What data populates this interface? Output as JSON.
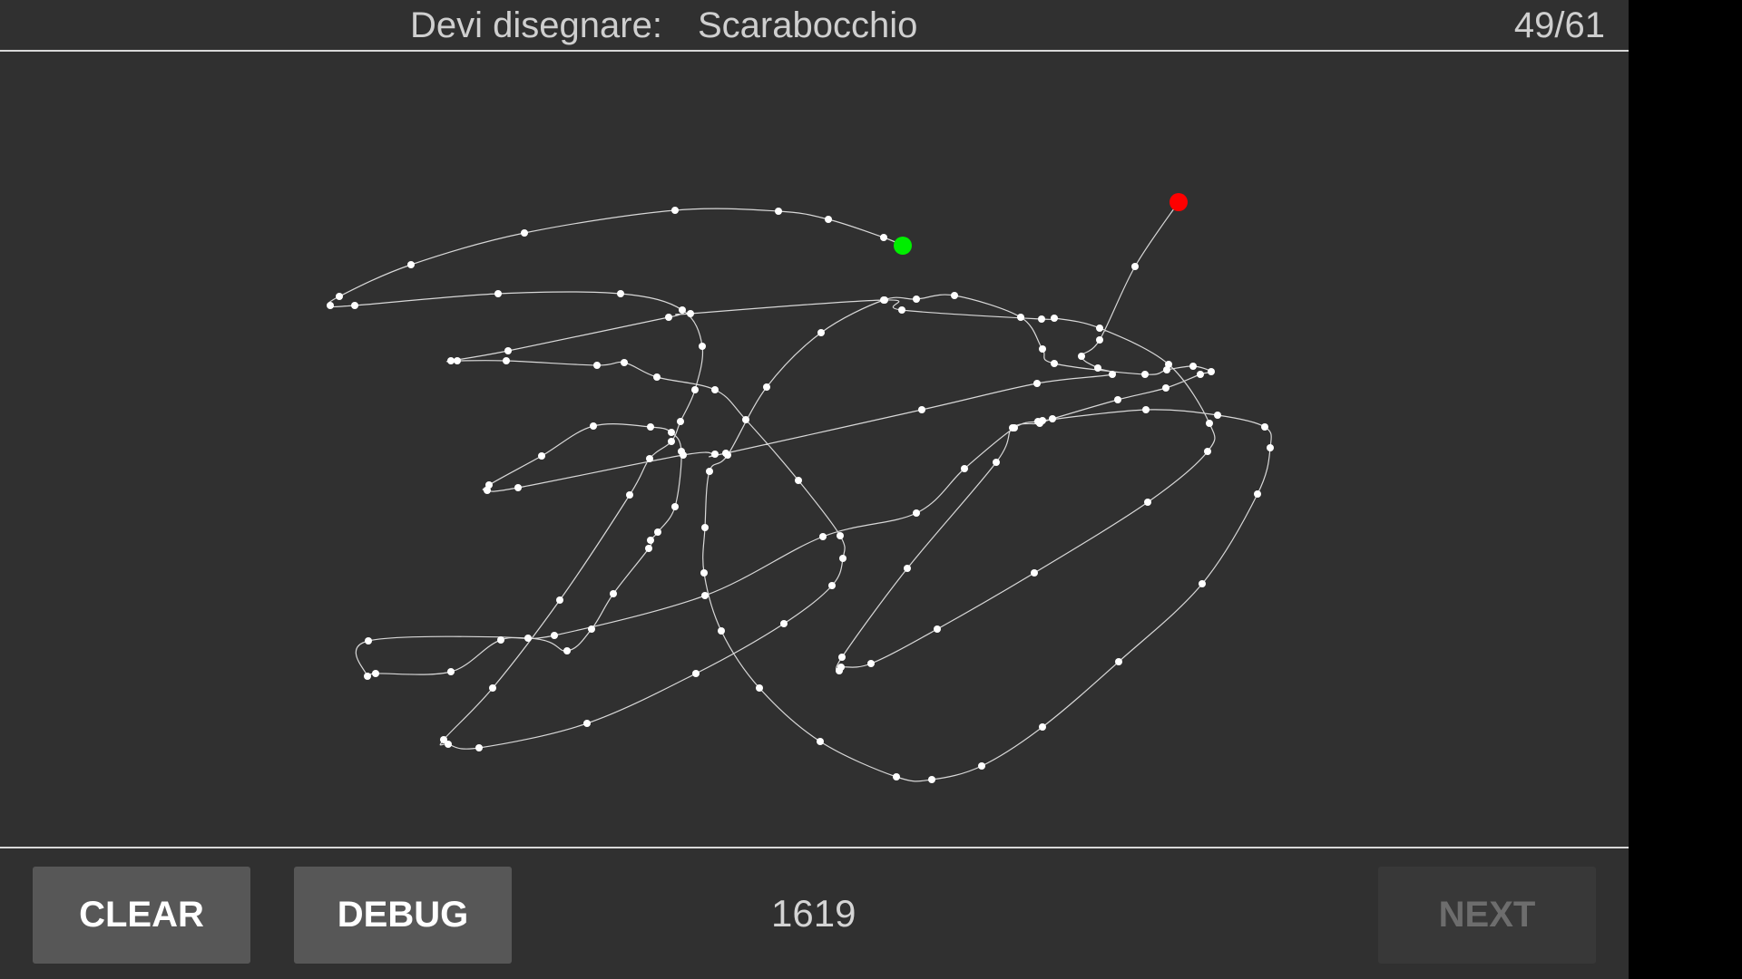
{
  "header": {
    "prompt_label": "Devi disegnare:",
    "prompt_word": "Scarabocchio",
    "progress": "49/61"
  },
  "canvas": {
    "stroke_color": "#d8d8d8",
    "point_color": "#ffffff",
    "start_point_color": "#00ee00",
    "end_point_color": "#ff0000"
  },
  "footer": {
    "clear_label": "CLEAR",
    "debug_label": "DEBUG",
    "point_count": "1619",
    "next_label": "NEXT",
    "next_enabled": false
  }
}
